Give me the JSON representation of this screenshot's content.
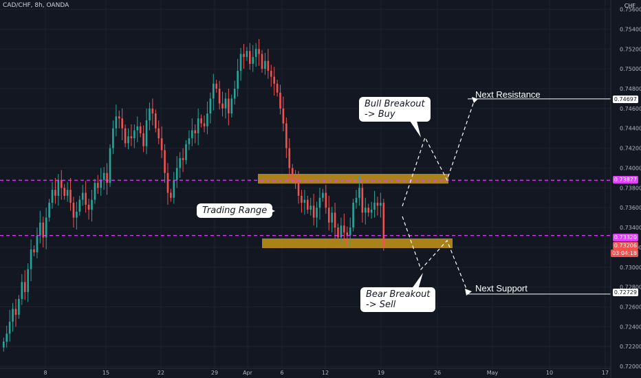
{
  "header": {
    "symbol_line": "CAD/CHF, 8h, OANDA",
    "currency": "CHF"
  },
  "colors": {
    "bg": "#131722",
    "up": "#26a69a",
    "down": "#ef5350",
    "grid": "#1e222d",
    "dash": "#e040fb",
    "zone": "#d4a017",
    "axis_text": "#b2b5be"
  },
  "price_axis": {
    "labels": [
      "0.75600",
      "0.75400",
      "0.75200",
      "0.75000",
      "0.74800",
      "0.74600",
      "0.74400",
      "0.74200",
      "0.74000",
      "0.73800",
      "0.73600",
      "0.73400",
      "0.73200",
      "0.73000",
      "0.72800",
      "0.72600",
      "0.72400",
      "0.72200",
      "0.72000"
    ],
    "values": [
      0.756,
      0.754,
      0.752,
      0.75,
      0.748,
      0.746,
      0.744,
      0.742,
      0.74,
      0.738,
      0.736,
      0.734,
      0.732,
      0.73,
      0.728,
      0.726,
      0.724,
      0.722,
      0.72
    ]
  },
  "time_axis": {
    "labels": [
      "8",
      "15",
      "22",
      "29",
      "Apr",
      "6",
      "12",
      "19",
      "26",
      "May",
      "10",
      "17"
    ]
  },
  "tags": {
    "resistance": "0.74697",
    "range_top": "0.73877",
    "range_bottom": "0.73320",
    "last_price": "0.73206",
    "countdown": "03:04:18",
    "support": "0.72729"
  },
  "annotations": {
    "trading_range": "Trading Range",
    "bull_breakout": "Bull Breakout\n-> Buy",
    "bear_breakout": "Bear Breakout\n-> Sell",
    "next_resistance": "Next Resistance",
    "next_support": "Next Support"
  },
  "chart_data": {
    "type": "candlestick",
    "title": "CAD/CHF, 8h, OANDA",
    "ylim": [
      0.7198,
      0.7568
    ],
    "levels": {
      "resistance": 0.74697,
      "range_top": 0.73877,
      "range_bottom": 0.7332,
      "last": 0.73206,
      "support": 0.72729
    },
    "close": [
      0.7225,
      0.7233,
      0.7245,
      0.7258,
      0.7252,
      0.7268,
      0.7285,
      0.7275,
      0.7298,
      0.7318,
      0.7315,
      0.7332,
      0.7345,
      0.733,
      0.735,
      0.7365,
      0.7378,
      0.7372,
      0.7388,
      0.738,
      0.7372,
      0.7378,
      0.7365,
      0.735,
      0.7356,
      0.7368,
      0.7375,
      0.7363,
      0.7358,
      0.7368,
      0.7385,
      0.738,
      0.7388,
      0.7395,
      0.7385,
      0.742,
      0.744,
      0.7452,
      0.745,
      0.744,
      0.7425,
      0.7432,
      0.743,
      0.7438,
      0.7442,
      0.7435,
      0.7422,
      0.7448,
      0.746,
      0.7455,
      0.744,
      0.743,
      0.7418,
      0.7395,
      0.7375,
      0.737,
      0.7388,
      0.74,
      0.741,
      0.7408,
      0.7424,
      0.743,
      0.7438,
      0.7435,
      0.745,
      0.7445,
      0.7442,
      0.7455,
      0.747,
      0.7485,
      0.748,
      0.7465,
      0.746,
      0.747,
      0.7455,
      0.747,
      0.748,
      0.7498,
      0.7515,
      0.7512,
      0.7518,
      0.7505,
      0.7512,
      0.752,
      0.7515,
      0.75,
      0.7508,
      0.7498,
      0.7492,
      0.7485,
      0.7476,
      0.746,
      0.7445,
      0.742,
      0.74,
      0.739,
      0.7385,
      0.7372,
      0.7365,
      0.7368,
      0.7358,
      0.7362,
      0.735,
      0.736,
      0.737,
      0.7375,
      0.736,
      0.7345,
      0.7355,
      0.734,
      0.733,
      0.7342,
      0.7335,
      0.7332,
      0.734,
      0.7365,
      0.737,
      0.738,
      0.7355,
      0.736,
      0.7355,
      0.7358,
      0.7365,
      0.7362,
      0.7365,
      0.73206
    ]
  }
}
